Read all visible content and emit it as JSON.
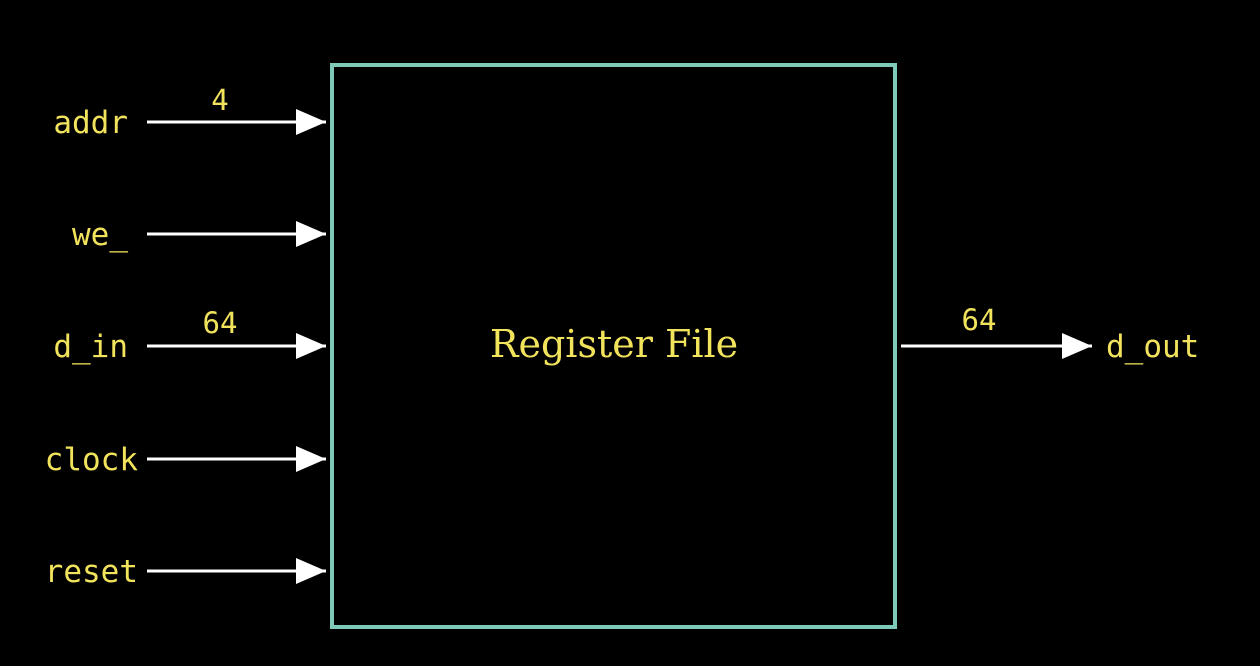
{
  "colors": {
    "background": "#000000",
    "text": "#f2e35c",
    "wire": "#ffffff",
    "block_border": "#7fc9b8"
  },
  "block": {
    "title": "Register File"
  },
  "inputs": [
    {
      "name": "addr",
      "width": "4"
    },
    {
      "name": "we_",
      "width": ""
    },
    {
      "name": "d_in",
      "width": "64"
    },
    {
      "name": "clock",
      "width": ""
    },
    {
      "name": "reset",
      "width": ""
    }
  ],
  "outputs": [
    {
      "name": "d_out",
      "width": "64"
    }
  ]
}
